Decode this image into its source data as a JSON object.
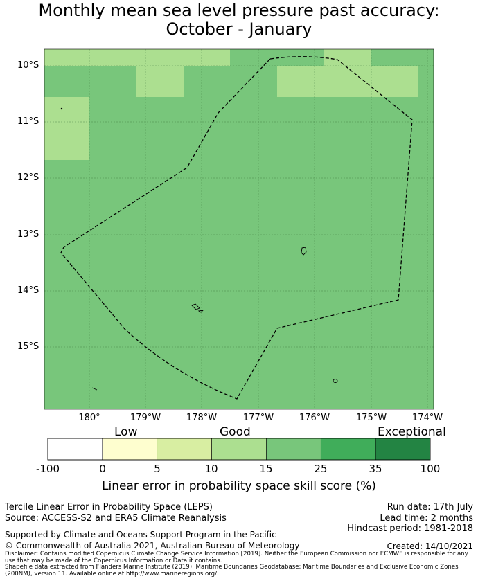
{
  "title": {
    "line1": "Monthly mean sea level pressure past accuracy:",
    "line2": "October - January"
  },
  "map": {
    "lat_labels": [
      "10°S",
      "11°S",
      "12°S",
      "13°S",
      "14°S",
      "15°S"
    ],
    "lon_labels": [
      "180°",
      "179°W",
      "178°W",
      "177°W",
      "176°W",
      "175°W",
      "174°W"
    ],
    "colors": {
      "good_10_15": "#acdf90",
      "good_15_25": "#78c67b",
      "grid": "#3d7a3e",
      "boundary": "#000000"
    }
  },
  "colorbar": {
    "categories": [
      "Low",
      "Good",
      "Exceptional"
    ],
    "ticks": [
      "-100",
      "0",
      "5",
      "10",
      "15",
      "25",
      "35",
      "100"
    ],
    "colors": [
      "#ffffff",
      "#fefecf",
      "#d8eea2",
      "#acdf90",
      "#78c67b",
      "#40ad5a",
      "#238443"
    ],
    "title": "Linear error in probability space skill score (%)"
  },
  "footer": {
    "method": "Tercile Linear Error in Probability Space (LEPS)",
    "source": "Source: ACCESS-S2 and ERA5 Climate Reanalysis",
    "run_date": "Run date: 17th July",
    "lead_time": "Lead time: 2 months",
    "hindcast": "Hindcast period: 1981-2018",
    "support": "Supported by Climate and Oceans Support Program in the Pacific",
    "copyright": "© Commonwealth of Australia 2021, Australian Bureau of Meteorology",
    "created": "Created: 14/10/2021",
    "disclaimer": "Disclaimer: Contains modified Copernicus Climate Change Service Information [2019]. Neither the European Commission nor ECMWF is responsible for any use that may be made of the Copernicus Information or Data it contains.",
    "shapefile": "Shapefile data extracted from Flanders Marine Institute (2019). Maritime Boundaries Geodatabase: Maritime Boundaries and Exclusive Economic Zones (200NM), version 11. Available online at http://www.marineregions.org/."
  }
}
